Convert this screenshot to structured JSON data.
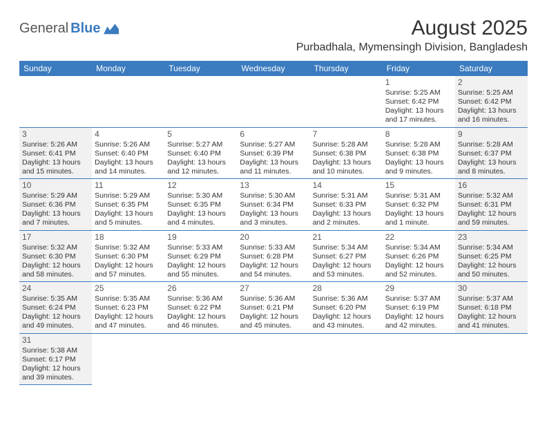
{
  "logo": {
    "general": "General",
    "blue": "Blue"
  },
  "title": "August 2025",
  "location": "Purbadhala, Mymensingh Division, Bangladesh",
  "weekdays": [
    "Sunday",
    "Monday",
    "Tuesday",
    "Wednesday",
    "Thursday",
    "Friday",
    "Saturday"
  ],
  "colors": {
    "header_bg": "#3b7bbf",
    "header_text": "#ffffff",
    "shade_bg": "#f1f1f1",
    "border": "#3b7bbf",
    "text": "#333333"
  },
  "grid_columns": 7,
  "leading_blanks": 5,
  "days": [
    {
      "n": "1",
      "sunrise": "Sunrise: 5:25 AM",
      "sunset": "Sunset: 6:42 PM",
      "daylight": "Daylight: 13 hours and 17 minutes.",
      "shade": false
    },
    {
      "n": "2",
      "sunrise": "Sunrise: 5:25 AM",
      "sunset": "Sunset: 6:42 PM",
      "daylight": "Daylight: 13 hours and 16 minutes.",
      "shade": true
    },
    {
      "n": "3",
      "sunrise": "Sunrise: 5:26 AM",
      "sunset": "Sunset: 6:41 PM",
      "daylight": "Daylight: 13 hours and 15 minutes.",
      "shade": true
    },
    {
      "n": "4",
      "sunrise": "Sunrise: 5:26 AM",
      "sunset": "Sunset: 6:40 PM",
      "daylight": "Daylight: 13 hours and 14 minutes.",
      "shade": false
    },
    {
      "n": "5",
      "sunrise": "Sunrise: 5:27 AM",
      "sunset": "Sunset: 6:40 PM",
      "daylight": "Daylight: 13 hours and 12 minutes.",
      "shade": false
    },
    {
      "n": "6",
      "sunrise": "Sunrise: 5:27 AM",
      "sunset": "Sunset: 6:39 PM",
      "daylight": "Daylight: 13 hours and 11 minutes.",
      "shade": false
    },
    {
      "n": "7",
      "sunrise": "Sunrise: 5:28 AM",
      "sunset": "Sunset: 6:38 PM",
      "daylight": "Daylight: 13 hours and 10 minutes.",
      "shade": false
    },
    {
      "n": "8",
      "sunrise": "Sunrise: 5:28 AM",
      "sunset": "Sunset: 6:38 PM",
      "daylight": "Daylight: 13 hours and 9 minutes.",
      "shade": false
    },
    {
      "n": "9",
      "sunrise": "Sunrise: 5:28 AM",
      "sunset": "Sunset: 6:37 PM",
      "daylight": "Daylight: 13 hours and 8 minutes.",
      "shade": true
    },
    {
      "n": "10",
      "sunrise": "Sunrise: 5:29 AM",
      "sunset": "Sunset: 6:36 PM",
      "daylight": "Daylight: 13 hours and 7 minutes.",
      "shade": true
    },
    {
      "n": "11",
      "sunrise": "Sunrise: 5:29 AM",
      "sunset": "Sunset: 6:35 PM",
      "daylight": "Daylight: 13 hours and 5 minutes.",
      "shade": false
    },
    {
      "n": "12",
      "sunrise": "Sunrise: 5:30 AM",
      "sunset": "Sunset: 6:35 PM",
      "daylight": "Daylight: 13 hours and 4 minutes.",
      "shade": false
    },
    {
      "n": "13",
      "sunrise": "Sunrise: 5:30 AM",
      "sunset": "Sunset: 6:34 PM",
      "daylight": "Daylight: 13 hours and 3 minutes.",
      "shade": false
    },
    {
      "n": "14",
      "sunrise": "Sunrise: 5:31 AM",
      "sunset": "Sunset: 6:33 PM",
      "daylight": "Daylight: 13 hours and 2 minutes.",
      "shade": false
    },
    {
      "n": "15",
      "sunrise": "Sunrise: 5:31 AM",
      "sunset": "Sunset: 6:32 PM",
      "daylight": "Daylight: 13 hours and 1 minute.",
      "shade": false
    },
    {
      "n": "16",
      "sunrise": "Sunrise: 5:32 AM",
      "sunset": "Sunset: 6:31 PM",
      "daylight": "Daylight: 12 hours and 59 minutes.",
      "shade": true
    },
    {
      "n": "17",
      "sunrise": "Sunrise: 5:32 AM",
      "sunset": "Sunset: 6:30 PM",
      "daylight": "Daylight: 12 hours and 58 minutes.",
      "shade": true
    },
    {
      "n": "18",
      "sunrise": "Sunrise: 5:32 AM",
      "sunset": "Sunset: 6:30 PM",
      "daylight": "Daylight: 12 hours and 57 minutes.",
      "shade": false
    },
    {
      "n": "19",
      "sunrise": "Sunrise: 5:33 AM",
      "sunset": "Sunset: 6:29 PM",
      "daylight": "Daylight: 12 hours and 55 minutes.",
      "shade": false
    },
    {
      "n": "20",
      "sunrise": "Sunrise: 5:33 AM",
      "sunset": "Sunset: 6:28 PM",
      "daylight": "Daylight: 12 hours and 54 minutes.",
      "shade": false
    },
    {
      "n": "21",
      "sunrise": "Sunrise: 5:34 AM",
      "sunset": "Sunset: 6:27 PM",
      "daylight": "Daylight: 12 hours and 53 minutes.",
      "shade": false
    },
    {
      "n": "22",
      "sunrise": "Sunrise: 5:34 AM",
      "sunset": "Sunset: 6:26 PM",
      "daylight": "Daylight: 12 hours and 52 minutes.",
      "shade": false
    },
    {
      "n": "23",
      "sunrise": "Sunrise: 5:34 AM",
      "sunset": "Sunset: 6:25 PM",
      "daylight": "Daylight: 12 hours and 50 minutes.",
      "shade": true
    },
    {
      "n": "24",
      "sunrise": "Sunrise: 5:35 AM",
      "sunset": "Sunset: 6:24 PM",
      "daylight": "Daylight: 12 hours and 49 minutes.",
      "shade": true
    },
    {
      "n": "25",
      "sunrise": "Sunrise: 5:35 AM",
      "sunset": "Sunset: 6:23 PM",
      "daylight": "Daylight: 12 hours and 47 minutes.",
      "shade": false
    },
    {
      "n": "26",
      "sunrise": "Sunrise: 5:36 AM",
      "sunset": "Sunset: 6:22 PM",
      "daylight": "Daylight: 12 hours and 46 minutes.",
      "shade": false
    },
    {
      "n": "27",
      "sunrise": "Sunrise: 5:36 AM",
      "sunset": "Sunset: 6:21 PM",
      "daylight": "Daylight: 12 hours and 45 minutes.",
      "shade": false
    },
    {
      "n": "28",
      "sunrise": "Sunrise: 5:36 AM",
      "sunset": "Sunset: 6:20 PM",
      "daylight": "Daylight: 12 hours and 43 minutes.",
      "shade": false
    },
    {
      "n": "29",
      "sunrise": "Sunrise: 5:37 AM",
      "sunset": "Sunset: 6:19 PM",
      "daylight": "Daylight: 12 hours and 42 minutes.",
      "shade": false
    },
    {
      "n": "30",
      "sunrise": "Sunrise: 5:37 AM",
      "sunset": "Sunset: 6:18 PM",
      "daylight": "Daylight: 12 hours and 41 minutes.",
      "shade": true
    },
    {
      "n": "31",
      "sunrise": "Sunrise: 5:38 AM",
      "sunset": "Sunset: 6:17 PM",
      "daylight": "Daylight: 12 hours and 39 minutes.",
      "shade": true
    }
  ]
}
